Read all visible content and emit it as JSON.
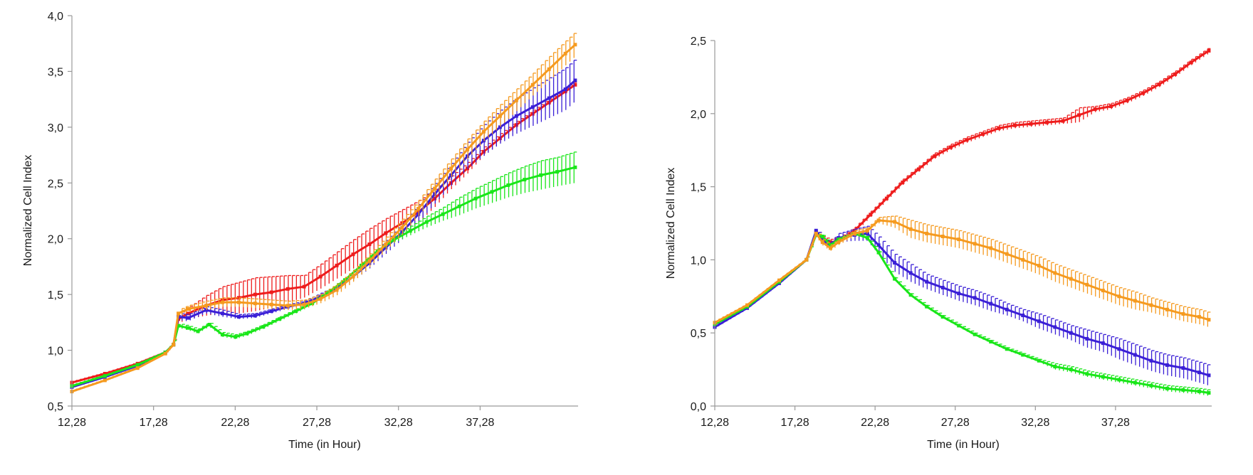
{
  "chart_data": [
    {
      "type": "line",
      "title": "",
      "xlabel": "Time (in Hour)",
      "ylabel": "Normalized Cell Index",
      "xlim": [
        12.28,
        43.28
      ],
      "ylim": [
        0.5,
        4.0
      ],
      "xticks": [
        "12,28",
        "17,28",
        "22,28",
        "27,28",
        "32,28",
        "37,28"
      ],
      "xtick_values": [
        12.28,
        17.28,
        22.28,
        27.28,
        32.28,
        37.28
      ],
      "yticks": [
        "0,5",
        "1,0",
        "1,5",
        "2,0",
        "2,5",
        "3,0",
        "3,5",
        "4,0"
      ],
      "ytick_values": [
        0.5,
        1.0,
        1.5,
        2.0,
        2.5,
        3.0,
        3.5,
        4.0
      ],
      "grid": false,
      "legend": "none",
      "error_bars": true,
      "series": [
        {
          "color": "#ee1c1c",
          "x": [
            12.28,
            14.3,
            16.3,
            18.0,
            18.5,
            18.8,
            19.4,
            20.5,
            21.5,
            22.5,
            23.5,
            24.5,
            25.5,
            26.5,
            27.5,
            28.5,
            29.5,
            30.5,
            31.5,
            32.5,
            33.5,
            34.5,
            35.5,
            36.5,
            37.5,
            38.5,
            39.5,
            40.5,
            41.5,
            42.5,
            43.1
          ],
          "y": [
            0.71,
            0.79,
            0.88,
            0.98,
            1.05,
            1.28,
            1.33,
            1.4,
            1.45,
            1.47,
            1.5,
            1.52,
            1.55,
            1.57,
            1.66,
            1.76,
            1.86,
            1.95,
            2.05,
            2.14,
            2.24,
            2.36,
            2.5,
            2.63,
            2.78,
            2.9,
            3.02,
            3.12,
            3.22,
            3.32,
            3.38
          ],
          "err": [
            0.01,
            0.01,
            0.01,
            0.01,
            0.02,
            0.04,
            0.05,
            0.09,
            0.12,
            0.14,
            0.15,
            0.14,
            0.12,
            0.1,
            0.11,
            0.12,
            0.13,
            0.14,
            0.13,
            0.12,
            0.1,
            0.08,
            0.06,
            0.05,
            0.04,
            0.04,
            0.03,
            0.03,
            0.03,
            0.03,
            0.03
          ]
        },
        {
          "color": "#3a1fd6",
          "x": [
            12.28,
            14.3,
            16.3,
            18.0,
            18.5,
            18.8,
            19.4,
            20.5,
            21.5,
            22.5,
            23.5,
            24.5,
            25.5,
            26.5,
            27.5,
            28.5,
            29.5,
            30.5,
            31.5,
            32.5,
            33.5,
            34.5,
            35.5,
            36.5,
            37.5,
            38.5,
            39.5,
            40.5,
            41.5,
            42.5,
            43.1
          ],
          "y": [
            0.67,
            0.76,
            0.86,
            0.98,
            1.05,
            1.3,
            1.29,
            1.36,
            1.33,
            1.3,
            1.31,
            1.35,
            1.39,
            1.42,
            1.48,
            1.55,
            1.66,
            1.78,
            1.92,
            2.06,
            2.22,
            2.4,
            2.57,
            2.74,
            2.88,
            3.0,
            3.1,
            3.18,
            3.26,
            3.34,
            3.42
          ],
          "err": [
            0.01,
            0.01,
            0.01,
            0.01,
            0.02,
            0.03,
            0.03,
            0.03,
            0.03,
            0.02,
            0.02,
            0.02,
            0.02,
            0.02,
            0.03,
            0.03,
            0.04,
            0.05,
            0.06,
            0.07,
            0.08,
            0.09,
            0.1,
            0.12,
            0.14,
            0.15,
            0.16,
            0.17,
            0.18,
            0.19,
            0.19
          ]
        },
        {
          "color": "#19e619",
          "x": [
            12.28,
            14.3,
            16.3,
            18.0,
            18.5,
            18.8,
            19.4,
            20.0,
            20.7,
            21.5,
            22.3,
            23.0,
            24.0,
            25.0,
            26.0,
            27.0,
            28.0,
            29.0,
            30.0,
            31.0,
            32.0,
            33.0,
            34.0,
            35.0,
            36.0,
            37.0,
            38.0,
            39.0,
            40.0,
            41.0,
            42.0,
            43.1
          ],
          "y": [
            0.68,
            0.77,
            0.87,
            0.98,
            1.05,
            1.22,
            1.2,
            1.17,
            1.23,
            1.14,
            1.12,
            1.15,
            1.21,
            1.28,
            1.35,
            1.42,
            1.52,
            1.63,
            1.76,
            1.89,
            1.99,
            2.07,
            2.15,
            2.22,
            2.29,
            2.36,
            2.42,
            2.48,
            2.53,
            2.57,
            2.6,
            2.64
          ],
          "err": [
            0.01,
            0.01,
            0.01,
            0.01,
            0.02,
            0.02,
            0.02,
            0.02,
            0.02,
            0.02,
            0.02,
            0.02,
            0.02,
            0.02,
            0.02,
            0.02,
            0.02,
            0.02,
            0.02,
            0.02,
            0.03,
            0.04,
            0.05,
            0.06,
            0.08,
            0.09,
            0.1,
            0.11,
            0.12,
            0.13,
            0.13,
            0.14
          ]
        },
        {
          "color": "#f59a1f",
          "x": [
            12.28,
            14.3,
            16.3,
            18.0,
            18.5,
            18.8,
            19.4,
            20.5,
            21.5,
            22.5,
            23.5,
            24.5,
            25.5,
            26.5,
            27.5,
            28.5,
            29.5,
            30.5,
            31.5,
            32.5,
            33.5,
            34.5,
            35.5,
            36.5,
            37.5,
            38.5,
            39.5,
            40.5,
            41.5,
            42.5,
            43.1
          ],
          "y": [
            0.63,
            0.73,
            0.84,
            0.97,
            1.05,
            1.33,
            1.37,
            1.4,
            1.43,
            1.43,
            1.42,
            1.41,
            1.4,
            1.41,
            1.46,
            1.54,
            1.66,
            1.8,
            1.95,
            2.1,
            2.27,
            2.45,
            2.63,
            2.8,
            2.96,
            3.1,
            3.24,
            3.38,
            3.52,
            3.66,
            3.74
          ],
          "err": [
            0.01,
            0.01,
            0.01,
            0.01,
            0.02,
            0.03,
            0.03,
            0.04,
            0.04,
            0.04,
            0.04,
            0.04,
            0.04,
            0.04,
            0.04,
            0.05,
            0.05,
            0.06,
            0.06,
            0.07,
            0.07,
            0.08,
            0.08,
            0.09,
            0.09,
            0.1,
            0.1,
            0.1,
            0.11,
            0.11,
            0.11
          ]
        }
      ]
    },
    {
      "type": "line",
      "title": "",
      "xlabel": "Time (in Hour)",
      "ylabel": "Normalized Cell Index",
      "xlim": [
        12.28,
        43.28
      ],
      "ylim": [
        0.0,
        2.5
      ],
      "xticks": [
        "12,28",
        "17,28",
        "22,28",
        "27,28",
        "32,28",
        "37,28"
      ],
      "xtick_values": [
        12.28,
        17.28,
        22.28,
        27.28,
        32.28,
        37.28
      ],
      "yticks": [
        "0,0",
        "0,5",
        "1,0",
        "1,5",
        "2,0",
        "2,5"
      ],
      "ytick_values": [
        0.0,
        0.5,
        1.0,
        1.5,
        2.0,
        2.5
      ],
      "grid": false,
      "legend": "none",
      "error_bars": true,
      "series": [
        {
          "color": "#ee1c1c",
          "x": [
            12.28,
            14.3,
            16.3,
            18.0,
            18.6,
            19.0,
            19.5,
            20.0,
            21.0,
            22.0,
            23.0,
            24.0,
            25.0,
            26.0,
            27.0,
            28.0,
            29.0,
            30.0,
            31.0,
            32.0,
            33.0,
            34.0,
            35.0,
            36.0,
            37.0,
            38.0,
            39.0,
            40.0,
            41.0,
            42.0,
            43.1
          ],
          "y": [
            0.56,
            0.68,
            0.85,
            1.0,
            1.19,
            1.14,
            1.12,
            1.13,
            1.2,
            1.31,
            1.42,
            1.53,
            1.62,
            1.71,
            1.77,
            1.82,
            1.86,
            1.9,
            1.92,
            1.93,
            1.94,
            1.95,
            1.99,
            2.03,
            2.05,
            2.09,
            2.14,
            2.2,
            2.27,
            2.35,
            2.43
          ],
          "err": [
            0.01,
            0.01,
            0.01,
            0.01,
            0.02,
            0.02,
            0.02,
            0.02,
            0.02,
            0.02,
            0.02,
            0.02,
            0.02,
            0.02,
            0.02,
            0.02,
            0.02,
            0.02,
            0.02,
            0.02,
            0.02,
            0.02,
            0.05,
            0.02,
            0.02,
            0.02,
            0.02,
            0.02,
            0.02,
            0.02,
            0.02
          ]
        },
        {
          "color": "#3a1fd6",
          "x": [
            12.28,
            14.3,
            16.3,
            18.0,
            18.6,
            19.0,
            19.5,
            20.0,
            21.0,
            21.8,
            22.5,
            23.5,
            24.5,
            25.5,
            26.5,
            27.5,
            28.5,
            29.5,
            30.5,
            31.5,
            32.5,
            33.5,
            34.5,
            35.5,
            36.5,
            37.5,
            38.5,
            39.5,
            40.5,
            41.5,
            42.5,
            43.1
          ],
          "y": [
            0.54,
            0.67,
            0.84,
            1.0,
            1.2,
            1.13,
            1.1,
            1.15,
            1.17,
            1.18,
            1.1,
            0.98,
            0.91,
            0.85,
            0.81,
            0.77,
            0.74,
            0.7,
            0.66,
            0.62,
            0.58,
            0.54,
            0.5,
            0.46,
            0.43,
            0.39,
            0.35,
            0.31,
            0.28,
            0.26,
            0.23,
            0.21
          ],
          "err": [
            0.01,
            0.01,
            0.01,
            0.01,
            0.02,
            0.02,
            0.02,
            0.03,
            0.04,
            0.05,
            0.06,
            0.06,
            0.06,
            0.05,
            0.05,
            0.05,
            0.05,
            0.05,
            0.04,
            0.04,
            0.05,
            0.05,
            0.05,
            0.06,
            0.06,
            0.07,
            0.07,
            0.07,
            0.07,
            0.07,
            0.07,
            0.07
          ]
        },
        {
          "color": "#19e619",
          "x": [
            12.28,
            14.3,
            16.3,
            18.0,
            18.6,
            19.0,
            19.5,
            20.0,
            21.0,
            21.8,
            22.5,
            23.5,
            24.5,
            25.5,
            26.5,
            27.5,
            28.5,
            29.5,
            30.5,
            31.5,
            32.5,
            33.5,
            34.5,
            35.5,
            36.5,
            37.5,
            38.5,
            39.5,
            40.5,
            41.5,
            42.5,
            43.1
          ],
          "y": [
            0.56,
            0.68,
            0.85,
            1.0,
            1.17,
            1.16,
            1.1,
            1.14,
            1.18,
            1.15,
            1.05,
            0.87,
            0.76,
            0.68,
            0.61,
            0.55,
            0.49,
            0.44,
            0.39,
            0.35,
            0.31,
            0.27,
            0.25,
            0.22,
            0.2,
            0.18,
            0.16,
            0.14,
            0.12,
            0.11,
            0.1,
            0.09
          ],
          "err": [
            0.01,
            0.01,
            0.01,
            0.01,
            0.01,
            0.01,
            0.01,
            0.01,
            0.01,
            0.01,
            0.01,
            0.01,
            0.01,
            0.01,
            0.01,
            0.01,
            0.01,
            0.01,
            0.01,
            0.01,
            0.01,
            0.02,
            0.02,
            0.02,
            0.02,
            0.02,
            0.02,
            0.02,
            0.02,
            0.02,
            0.02,
            0.02
          ]
        },
        {
          "color": "#f59a1f",
          "x": [
            12.28,
            14.3,
            16.3,
            18.0,
            18.6,
            19.0,
            19.5,
            20.0,
            21.0,
            21.8,
            22.5,
            23.5,
            24.5,
            25.5,
            26.5,
            27.5,
            28.5,
            29.5,
            30.5,
            31.5,
            32.5,
            33.5,
            34.5,
            35.5,
            36.5,
            37.5,
            38.5,
            39.5,
            40.5,
            41.5,
            42.5,
            43.1
          ],
          "y": [
            0.57,
            0.69,
            0.86,
            1.0,
            1.18,
            1.12,
            1.08,
            1.12,
            1.18,
            1.2,
            1.27,
            1.26,
            1.21,
            1.18,
            1.16,
            1.14,
            1.11,
            1.08,
            1.04,
            1.0,
            0.96,
            0.91,
            0.87,
            0.83,
            0.79,
            0.75,
            0.72,
            0.69,
            0.66,
            0.63,
            0.61,
            0.59
          ],
          "err": [
            0.01,
            0.01,
            0.01,
            0.01,
            0.02,
            0.02,
            0.02,
            0.02,
            0.02,
            0.02,
            0.02,
            0.04,
            0.06,
            0.06,
            0.06,
            0.06,
            0.06,
            0.06,
            0.06,
            0.06,
            0.06,
            0.06,
            0.06,
            0.06,
            0.06,
            0.06,
            0.06,
            0.05,
            0.05,
            0.05,
            0.05,
            0.05
          ]
        }
      ]
    }
  ]
}
